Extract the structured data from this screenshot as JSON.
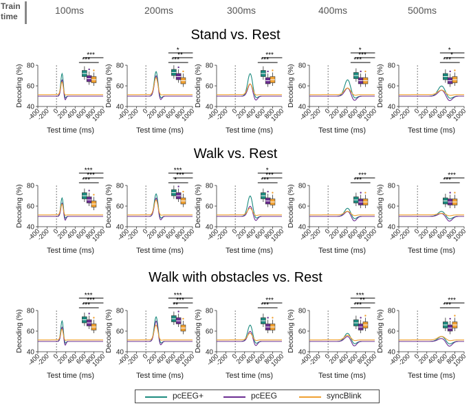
{
  "header": {
    "train_label_line1": "Train",
    "train_label_line2": "time",
    "test_windows": [
      "100ms",
      "200ms",
      "300ms",
      "400ms",
      "500ms"
    ]
  },
  "colors": {
    "pcEEG_plus": "#1b8a7e",
    "pcEEG": "#6a2c91",
    "syncBlink": "#f0a030"
  },
  "legend": {
    "items": [
      "pcEEG+",
      "pcEEG",
      "syncBlink"
    ]
  },
  "chart_data": [
    {
      "type": "line",
      "title": "Stand vs. Rest",
      "xlabel": "Test time (ms)",
      "ylabel": "Decoding (%)",
      "xlim": [
        -400,
        1000
      ],
      "ylim": [
        40,
        80
      ],
      "xticks": [
        -400,
        -200,
        0,
        200,
        400,
        600,
        800,
        1000
      ],
      "yticks": [
        40,
        60,
        80
      ],
      "panels": [
        {
          "train_ms": 100,
          "peak": [
            72,
            66,
            64
          ],
          "box_medians": [
            72,
            67,
            66
          ],
          "sig": [
            "***",
            "***"
          ]
        },
        {
          "train_ms": 200,
          "peak": [
            74,
            70,
            68
          ],
          "box_medians": [
            73,
            69,
            65
          ],
          "sig": [
            "***",
            "**",
            "*"
          ]
        },
        {
          "train_ms": 300,
          "peak": [
            72,
            62,
            62
          ],
          "box_medians": [
            72,
            65,
            66
          ],
          "sig": [
            "***",
            "***"
          ]
        },
        {
          "train_ms": 400,
          "peak": [
            66,
            58,
            58
          ],
          "box_medians": [
            70,
            65,
            65
          ],
          "sig": [
            "***",
            "***",
            "*"
          ]
        },
        {
          "train_ms": 500,
          "peak": [
            60,
            56,
            56
          ],
          "box_medians": [
            69,
            65,
            66
          ],
          "sig": [
            "***",
            "*",
            "*"
          ]
        }
      ]
    },
    {
      "type": "line",
      "title": "Walk vs. Rest",
      "xlabel": "Test time (ms)",
      "ylabel": "Decoding (%)",
      "xlim": [
        -400,
        1000
      ],
      "ylim": [
        40,
        80
      ],
      "xticks": [
        -400,
        -200,
        0,
        200,
        400,
        600,
        800,
        1000
      ],
      "yticks": [
        40,
        60,
        80
      ],
      "panels": [
        {
          "train_ms": 100,
          "peak": [
            68,
            63,
            62
          ],
          "box_medians": [
            70,
            66,
            62
          ],
          "sig": [
            "***",
            "***",
            "***"
          ]
        },
        {
          "train_ms": 200,
          "peak": [
            72,
            68,
            66
          ],
          "box_medians": [
            73,
            70,
            65
          ],
          "sig": [
            "*",
            "***",
            "***"
          ]
        },
        {
          "train_ms": 300,
          "peak": [
            70,
            60,
            58
          ],
          "box_medians": [
            70,
            65,
            64
          ],
          "sig": [
            "***",
            "***",
            "*"
          ]
        },
        {
          "train_ms": 400,
          "peak": [
            58,
            55,
            55
          ],
          "box_medians": [
            66,
            64,
            64
          ],
          "sig": [
            "***",
            "***"
          ]
        },
        {
          "train_ms": 500,
          "peak": [
            55,
            53,
            53
          ],
          "box_medians": [
            65,
            64,
            64
          ],
          "sig": [
            "***",
            "***"
          ]
        }
      ]
    },
    {
      "type": "line",
      "title": "Walk with obstacles vs. Rest",
      "xlabel": "Test time (ms)",
      "ylabel": "Decoding (%)",
      "xlim": [
        -400,
        1000
      ],
      "ylim": [
        40,
        80
      ],
      "xticks": [
        -400,
        -200,
        0,
        200,
        400,
        600,
        800,
        1000
      ],
      "yticks": [
        40,
        60,
        80
      ],
      "panels": [
        {
          "train_ms": 100,
          "peak": [
            70,
            64,
            62
          ],
          "box_medians": [
            71,
            68,
            64
          ],
          "sig": [
            "***",
            "***",
            "***"
          ]
        },
        {
          "train_ms": 200,
          "peak": [
            74,
            70,
            66
          ],
          "box_medians": [
            72,
            70,
            63
          ],
          "sig": [
            "**",
            "***",
            "***"
          ]
        },
        {
          "train_ms": 300,
          "peak": [
            66,
            60,
            58
          ],
          "box_medians": [
            70,
            64,
            64
          ],
          "sig": [
            "***",
            "***"
          ]
        },
        {
          "train_ms": 400,
          "peak": [
            58,
            55,
            56
          ],
          "box_medians": [
            68,
            64,
            66
          ],
          "sig": [
            "***",
            "**",
            "***"
          ]
        },
        {
          "train_ms": 500,
          "peak": [
            55,
            53,
            55
          ],
          "box_medians": [
            66,
            63,
            66
          ],
          "sig": [
            "***",
            "***"
          ]
        }
      ]
    }
  ]
}
